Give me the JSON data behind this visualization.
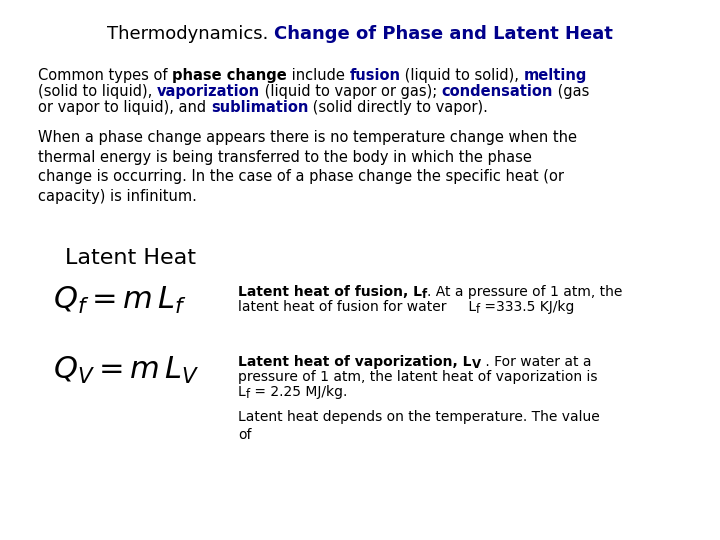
{
  "bg_color": "#ffffff",
  "black": "#000000",
  "blue": "#00008B",
  "title_normal": "Thermodynamics. ",
  "title_bold": "Change of Phase and Latent Heat",
  "para1_line1_parts": [
    [
      "Common types of ",
      false,
      false
    ],
    [
      "phase change",
      false,
      true
    ],
    [
      " include ",
      false,
      false
    ],
    [
      "fusion",
      true,
      false
    ],
    [
      " (liquid to solid), ",
      false,
      false
    ],
    [
      "melting",
      true,
      false
    ]
  ],
  "para1_line2_parts": [
    [
      "(solid to liquid), ",
      false,
      false
    ],
    [
      "vaporization",
      true,
      false
    ],
    [
      " (liquid to vapor or gas); ",
      false,
      false
    ],
    [
      "condensation",
      true,
      false
    ],
    [
      " (gas",
      false,
      false
    ]
  ],
  "para1_line3_parts": [
    [
      "or vapor to liquid), and ",
      false,
      false
    ],
    [
      "sublimation",
      true,
      false
    ],
    [
      " (solid directly to vapor).",
      false,
      false
    ]
  ],
  "para2": "When a phase change appears there is no temperature change when the\nthermal energy is being transferred to the body in which the phase\nchange is occurring. In the case of a phase change the specific heat (or\ncapacity) is infinitum.",
  "latent_heat": "Latent Heat",
  "eq1": "$Q_f = m\\,L_f$",
  "eq2": "$Q_V = m\\,L_V$",
  "desc1_line1_bold": "Latent heat of fusion, L",
  "desc1_line1_sub": "f",
  "desc1_line1_rest": ". At a pressure of 1 atm, the",
  "desc1_line2": "latent heat of fusion for water     L",
  "desc1_line2_sub": "f",
  "desc1_line2_rest": " =333.5 KJ/kg",
  "desc2_line1_bold": "Latent heat of vaporization, L",
  "desc2_line1_sub": "V",
  "desc2_line1_rest": " . For water at a",
  "desc2_line2": "pressure of 1 atm, the latent heat of vaporization is",
  "desc2_line3": "L",
  "desc2_line3_sub": "f",
  "desc2_line3_rest": " = 2.25 MJ/kg.",
  "desc3": "Latent heat depends on the temperature. The value\nof",
  "text_fs": 10.5,
  "title_fs": 13,
  "latent_fs": 16,
  "eq_fs": 22,
  "desc_fs": 10
}
